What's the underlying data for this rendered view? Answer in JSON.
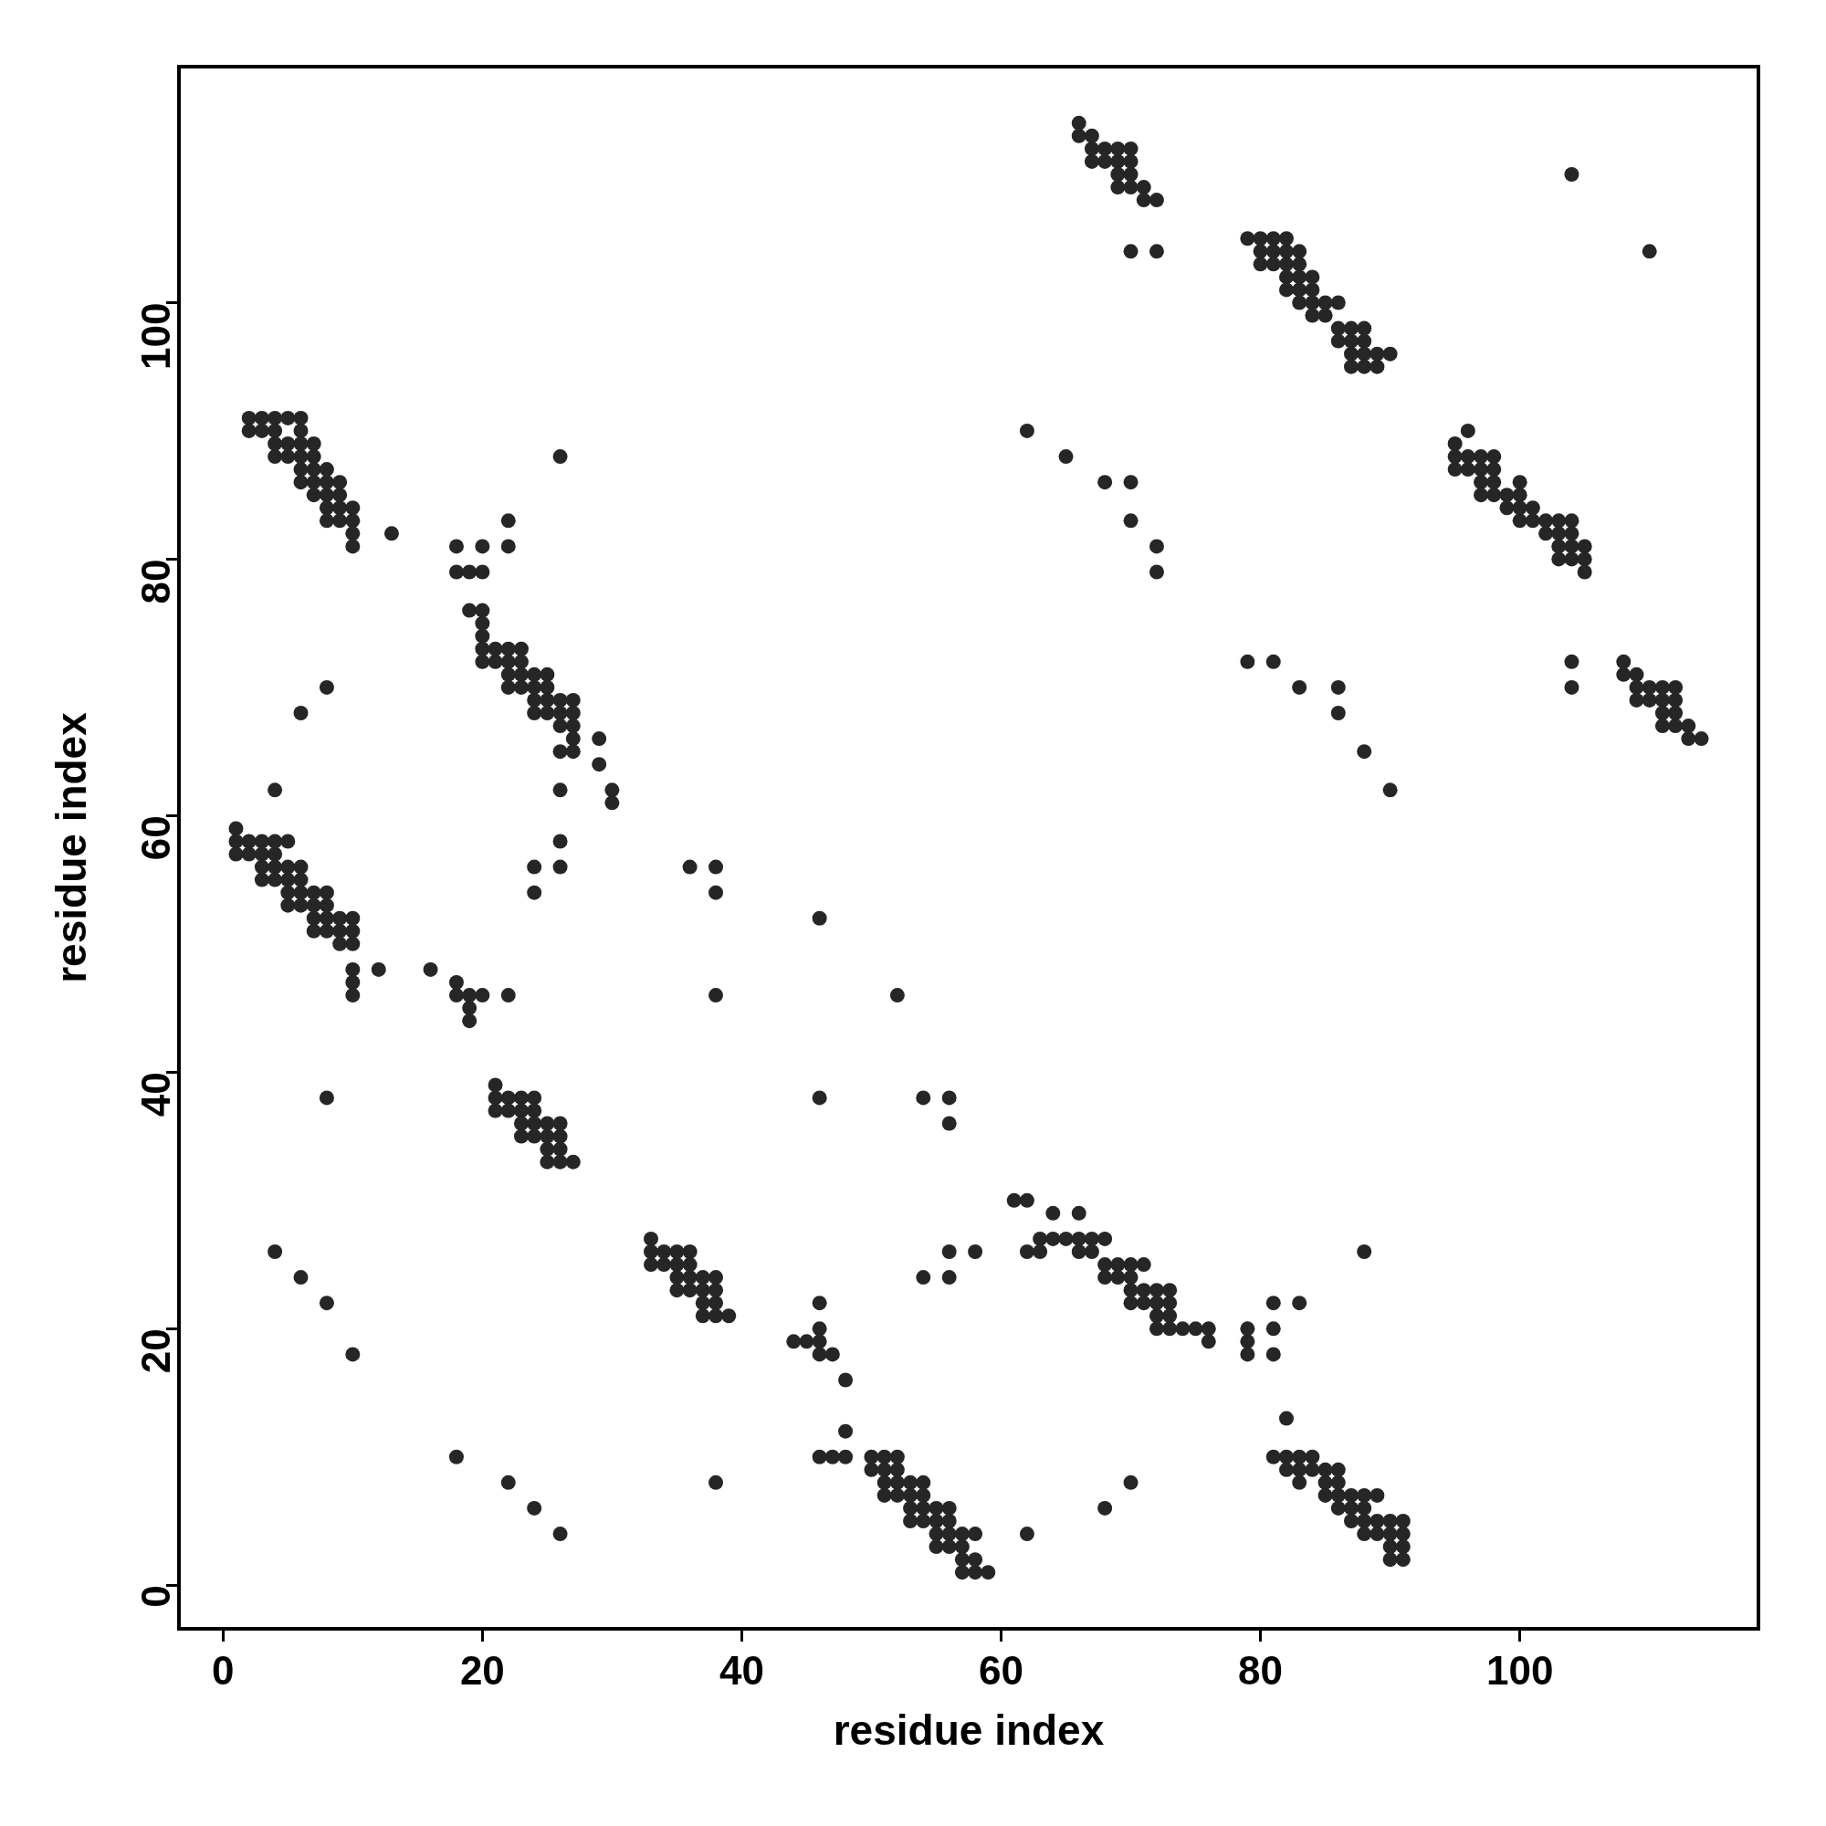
{
  "chart_data": {
    "type": "scatter",
    "xlabel": "residue index",
    "ylabel": "residue index",
    "xlim": [
      -3.4,
      118.4
    ],
    "ylim": [
      -3.4,
      118.4
    ],
    "xticks": [
      0,
      20,
      40,
      60,
      80,
      100
    ],
    "yticks": [
      0,
      20,
      40,
      60,
      80,
      100
    ],
    "grid": false,
    "legend": false,
    "marker": "circle",
    "x": [
      2,
      3,
      4,
      5,
      6,
      2,
      3,
      4,
      6,
      4,
      5,
      6,
      7,
      4,
      5,
      6,
      7,
      6,
      7,
      8,
      6,
      7,
      8,
      9,
      7,
      8,
      9,
      8,
      9,
      10,
      8,
      9,
      10,
      10,
      10,
      13,
      18,
      20,
      22,
      22,
      18,
      19,
      20,
      19,
      20,
      20,
      20,
      20,
      21,
      22,
      23,
      20,
      21,
      22,
      23,
      22,
      23,
      24,
      25,
      22,
      23,
      24,
      25,
      24,
      25,
      26,
      27,
      24,
      25,
      26,
      27,
      26,
      27,
      27,
      29,
      26,
      27,
      29,
      26,
      30,
      30,
      26,
      24,
      26,
      24,
      26,
      6,
      8,
      4,
      1,
      1,
      2,
      3,
      4,
      5,
      1,
      2,
      3,
      4,
      3,
      4,
      5,
      6,
      3,
      4,
      5,
      6,
      5,
      6,
      7,
      8,
      5,
      6,
      7,
      8,
      7,
      8,
      9,
      10,
      7,
      8,
      9,
      10,
      9,
      10,
      10,
      12,
      10,
      10,
      16,
      18,
      18,
      19,
      20,
      22,
      19,
      19,
      36,
      38,
      38,
      38,
      46,
      52,
      8,
      46,
      54,
      56,
      56,
      21,
      21,
      22,
      23,
      24,
      21,
      22,
      23,
      24,
      23,
      24,
      25,
      26,
      23,
      24,
      25,
      26,
      25,
      26,
      25,
      26,
      27,
      33,
      33,
      34,
      35,
      36,
      33,
      34,
      35,
      36,
      35,
      36,
      37,
      38,
      35,
      36,
      37,
      38,
      37,
      38,
      37,
      38,
      39,
      4,
      6,
      8,
      10,
      44,
      45,
      46,
      46,
      46,
      46,
      47,
      48,
      48,
      46,
      47,
      48,
      18,
      22,
      24,
      26,
      38,
      50,
      51,
      52,
      50,
      51,
      52,
      51,
      52,
      53,
      54,
      51,
      52,
      53,
      54,
      53,
      54,
      55,
      56,
      53,
      54,
      55,
      56,
      55,
      56,
      57,
      58,
      55,
      56,
      57,
      57,
      58,
      57,
      58,
      59,
      62,
      68,
      70,
      61,
      62,
      64,
      66,
      63,
      64,
      65,
      66,
      67,
      68,
      63,
      62,
      66,
      67,
      68,
      69,
      70,
      71,
      68,
      69,
      70,
      70,
      71,
      72,
      73,
      70,
      71,
      72,
      73,
      72,
      73,
      72,
      73,
      74,
      75,
      76,
      76,
      54,
      56,
      56,
      58,
      79,
      79,
      79,
      81,
      81,
      81,
      83,
      88,
      82,
      81,
      82,
      83,
      84,
      82,
      83,
      84,
      83,
      85,
      86,
      85,
      86,
      85,
      86,
      87,
      88,
      89,
      86,
      87,
      88,
      87,
      88,
      89,
      90,
      91,
      88,
      89,
      90,
      91,
      90,
      91,
      90,
      91,
      66,
      66,
      67,
      67,
      68,
      69,
      70,
      67,
      68,
      69,
      70,
      69,
      70,
      69,
      70,
      71,
      71,
      72,
      70,
      72,
      62,
      65,
      68,
      70,
      70,
      72,
      72,
      79,
      80,
      81,
      82,
      80,
      81,
      82,
      83,
      80,
      81,
      82,
      83,
      82,
      83,
      84,
      82,
      83,
      84,
      83,
      84,
      85,
      86,
      84,
      85,
      86,
      87,
      88,
      86,
      87,
      88,
      87,
      88,
      89,
      90,
      87,
      88,
      89,
      104,
      110,
      95,
      96,
      95,
      96,
      97,
      98,
      95,
      96,
      97,
      98,
      97,
      98,
      97,
      98,
      99,
      99,
      100,
      100,
      100,
      101,
      101,
      102,
      103,
      104,
      100,
      102,
      103,
      104,
      103,
      104,
      105,
      103,
      104,
      105,
      105,
      104,
      104,
      108,
      108,
      109,
      109,
      110,
      111,
      112,
      109,
      110,
      111,
      112,
      111,
      112,
      111,
      112,
      113,
      113,
      114,
      79,
      81,
      83,
      86,
      86,
      88,
      90
    ],
    "series": [
      {
        "color": "#262626",
        "values": [
          91,
          91,
          91,
          91,
          91,
          90,
          90,
          90,
          90,
          89,
          89,
          89,
          89,
          88,
          88,
          88,
          88,
          87,
          87,
          87,
          86,
          86,
          86,
          86,
          85,
          85,
          85,
          84,
          84,
          84,
          83,
          83,
          83,
          82,
          81,
          82,
          81,
          81,
          81,
          83,
          79,
          79,
          79,
          76,
          76,
          75,
          74,
          73,
          73,
          73,
          73,
          72,
          72,
          72,
          72,
          71,
          71,
          71,
          71,
          70,
          70,
          70,
          70,
          69,
          69,
          69,
          69,
          68,
          68,
          68,
          68,
          67,
          67,
          66,
          66,
          65,
          65,
          64,
          62,
          62,
          61,
          58,
          56,
          56,
          54,
          88,
          68,
          70,
          62,
          59,
          58,
          58,
          58,
          58,
          58,
          57,
          57,
          57,
          57,
          56,
          56,
          56,
          56,
          55,
          55,
          55,
          55,
          54,
          54,
          54,
          54,
          53,
          53,
          53,
          53,
          52,
          52,
          52,
          52,
          51,
          51,
          51,
          51,
          50,
          50,
          48,
          48,
          47,
          46,
          48,
          47,
          46,
          46,
          46,
          46,
          45,
          44,
          56,
          56,
          54,
          46,
          52,
          46,
          38,
          38,
          38,
          38,
          36,
          39,
          38,
          38,
          38,
          38,
          37,
          37,
          37,
          37,
          36,
          36,
          36,
          36,
          35,
          35,
          35,
          35,
          34,
          34,
          33,
          33,
          33,
          27,
          26,
          26,
          26,
          26,
          25,
          25,
          25,
          25,
          24,
          24,
          24,
          24,
          23,
          23,
          23,
          23,
          22,
          22,
          21,
          21,
          21,
          26,
          24,
          22,
          18,
          19,
          19,
          19,
          20,
          22,
          18,
          18,
          16,
          12,
          10,
          10,
          10,
          10,
          8,
          6,
          4,
          8,
          10,
          10,
          10,
          9,
          9,
          9,
          8,
          8,
          8,
          8,
          7,
          7,
          7,
          7,
          6,
          6,
          6,
          6,
          5,
          5,
          5,
          5,
          4,
          4,
          4,
          4,
          3,
          3,
          3,
          2,
          2,
          1,
          1,
          1,
          4,
          6,
          8,
          30,
          30,
          29,
          29,
          27,
          27,
          27,
          27,
          27,
          27,
          26,
          26,
          26,
          26,
          25,
          25,
          25,
          25,
          24,
          24,
          24,
          23,
          23,
          23,
          23,
          22,
          22,
          22,
          22,
          21,
          21,
          20,
          20,
          20,
          20,
          20,
          19,
          24,
          24,
          26,
          26,
          20,
          19,
          18,
          22,
          20,
          18,
          22,
          26,
          13,
          10,
          10,
          10,
          10,
          9,
          9,
          9,
          8,
          9,
          9,
          8,
          8,
          7,
          7,
          7,
          7,
          7,
          6,
          6,
          6,
          5,
          5,
          5,
          5,
          5,
          4,
          4,
          4,
          4,
          3,
          3,
          2,
          2,
          114,
          113,
          113,
          112,
          112,
          112,
          112,
          111,
          111,
          111,
          111,
          110,
          110,
          109,
          109,
          109,
          108,
          108,
          104,
          104,
          90,
          88,
          86,
          86,
          83,
          81,
          79,
          105,
          105,
          105,
          105,
          104,
          104,
          104,
          104,
          103,
          103,
          103,
          103,
          102,
          102,
          102,
          101,
          101,
          101,
          100,
          100,
          100,
          100,
          99,
          99,
          98,
          98,
          98,
          97,
          97,
          97,
          96,
          96,
          96,
          96,
          95,
          95,
          95,
          110,
          104,
          89,
          90,
          88,
          88,
          88,
          88,
          87,
          87,
          87,
          87,
          86,
          86,
          85,
          85,
          85,
          84,
          84,
          86,
          85,
          84,
          83,
          83,
          83,
          83,
          83,
          82,
          82,
          82,
          81,
          81,
          81,
          80,
          80,
          80,
          79,
          72,
          70,
          72,
          71,
          71,
          70,
          70,
          70,
          70,
          69,
          69,
          69,
          69,
          68,
          68,
          67,
          67,
          67,
          66,
          66,
          72,
          72,
          70,
          70,
          68,
          65,
          62
        ]
      }
    ]
  }
}
